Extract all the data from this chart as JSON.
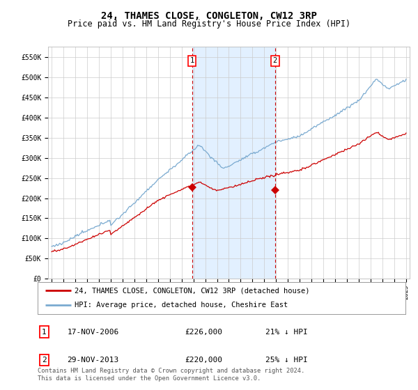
{
  "title": "24, THAMES CLOSE, CONGLETON, CW12 3RP",
  "subtitle": "Price paid vs. HM Land Registry's House Price Index (HPI)",
  "title_fontsize": 10,
  "subtitle_fontsize": 8.5,
  "bg_color": "#ffffff",
  "plot_bg_color": "#ffffff",
  "grid_color": "#cccccc",
  "hpi_color": "#7aaad0",
  "price_color": "#cc0000",
  "vline_color": "#cc0000",
  "highlight_bg": "#ddeeff",
  "ylim": [
    0,
    575000
  ],
  "yticks": [
    0,
    50000,
    100000,
    150000,
    200000,
    250000,
    300000,
    350000,
    400000,
    450000,
    500000,
    550000
  ],
  "ytick_labels": [
    "£0",
    "£50K",
    "£100K",
    "£150K",
    "£200K",
    "£250K",
    "£300K",
    "£350K",
    "£400K",
    "£450K",
    "£500K",
    "£550K"
  ],
  "sale1_date_num": 2006.88,
  "sale1_price": 226000,
  "sale1_label": "1",
  "sale2_date_num": 2013.91,
  "sale2_price": 220000,
  "sale2_label": "2",
  "legend1": "24, THAMES CLOSE, CONGLETON, CW12 3RP (detached house)",
  "legend2": "HPI: Average price, detached house, Cheshire East",
  "table_row1": [
    "1",
    "17-NOV-2006",
    "£226,000",
    "21% ↓ HPI"
  ],
  "table_row2": [
    "2",
    "29-NOV-2013",
    "£220,000",
    "25% ↓ HPI"
  ],
  "footnote": "Contains HM Land Registry data © Crown copyright and database right 2024.\nThis data is licensed under the Open Government Licence v3.0."
}
